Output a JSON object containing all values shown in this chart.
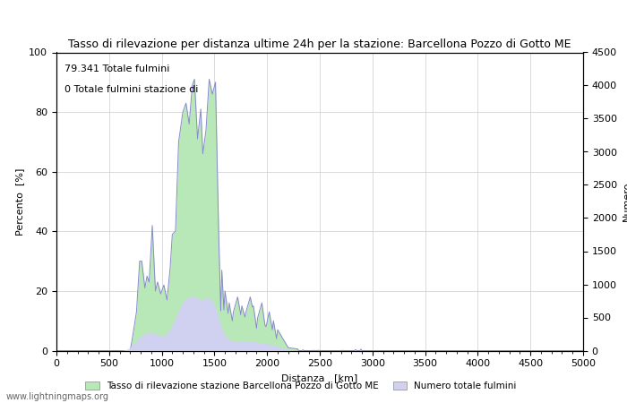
{
  "title": "Tasso di rilevazione per distanza ultime 24h per la stazione: Barcellona Pozzo di Gotto ME",
  "xlabel": "Distanza   [km]",
  "ylabel_left": "Percento  [%]",
  "ylabel_right": "Numero",
  "annotation_line1": "79.341 Totale fulmini",
  "annotation_line2": "0 Totale fulmini stazione di",
  "xlim": [
    0,
    5000
  ],
  "ylim_left": [
    0,
    100
  ],
  "ylim_right": [
    0,
    4500
  ],
  "xticks": [
    0,
    500,
    1000,
    1500,
    2000,
    2500,
    3000,
    3500,
    4000,
    4500,
    5000
  ],
  "yticks_left": [
    0,
    20,
    40,
    60,
    80,
    100
  ],
  "yticks_right": [
    0,
    500,
    1000,
    1500,
    2000,
    2500,
    3000,
    3500,
    4000,
    4500
  ],
  "background_color": "#ffffff",
  "grid_color": "#cccccc",
  "line_color": "#8888cc",
  "fill_color_green": "#b8e8b8",
  "fill_color_blue": "#d0d0f0",
  "legend_label_green": "Tasso di rilevazione stazione Barcellona Pozzo di Gotto ME",
  "legend_label_blue": "Numero totale fulmini",
  "watermark": "www.lightningmaps.org",
  "title_fontsize": 9,
  "axis_fontsize": 8,
  "tick_fontsize": 8,
  "annotation_fontsize": 8
}
